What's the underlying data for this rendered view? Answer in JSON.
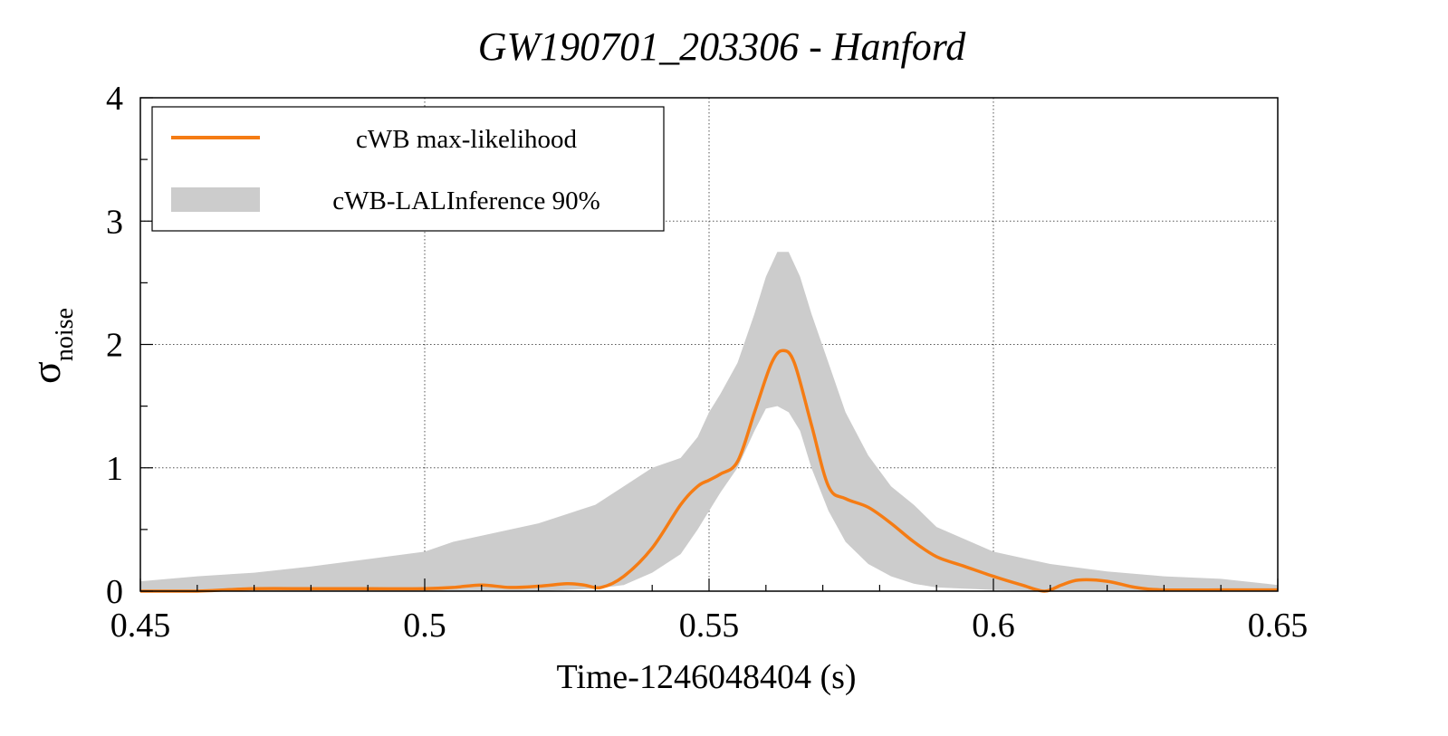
{
  "chart_data": {
    "type": "line",
    "title": "GW190701_203306 - Hanford",
    "xlabel": "Time-1246048404 (s)",
    "ylabel": {
      "main": "σ",
      "sub": "noise"
    },
    "xlim": [
      0.45,
      0.65
    ],
    "ylim": [
      0,
      4
    ],
    "x_ticks": [
      0.45,
      0.5,
      0.55,
      0.6,
      0.65
    ],
    "x_tick_labels": [
      "0.45",
      "0.5",
      "0.55",
      "0.6",
      "0.65"
    ],
    "y_ticks": [
      0,
      1,
      2,
      3,
      4
    ],
    "y_tick_labels": [
      "0",
      "1",
      "2",
      "3",
      "4"
    ],
    "grid": true,
    "legend_position": "top-left",
    "series": [
      {
        "name": "cWB max-likelihood",
        "kind": "line",
        "color": "#f57c14",
        "x": [
          0.45,
          0.46,
          0.47,
          0.48,
          0.49,
          0.5,
          0.505,
          0.51,
          0.515,
          0.52,
          0.525,
          0.528,
          0.531,
          0.535,
          0.54,
          0.545,
          0.548,
          0.55,
          0.552,
          0.555,
          0.558,
          0.561,
          0.563,
          0.565,
          0.568,
          0.571,
          0.574,
          0.578,
          0.582,
          0.586,
          0.59,
          0.595,
          0.6,
          0.605,
          0.609,
          0.612,
          0.615,
          0.62,
          0.625,
          0.63,
          0.64,
          0.65
        ],
        "y": [
          0.0,
          0.0,
          0.02,
          0.02,
          0.02,
          0.02,
          0.03,
          0.05,
          0.03,
          0.04,
          0.06,
          0.05,
          0.03,
          0.12,
          0.35,
          0.7,
          0.85,
          0.9,
          0.95,
          1.05,
          1.45,
          1.85,
          1.95,
          1.85,
          1.35,
          0.85,
          0.75,
          0.68,
          0.55,
          0.4,
          0.28,
          0.2,
          0.12,
          0.05,
          0.0,
          0.05,
          0.09,
          0.08,
          0.03,
          0.01,
          0.01,
          0.01
        ]
      },
      {
        "name": "cWB-LALInference 90%",
        "kind": "band",
        "color": "#cccccc",
        "x": [
          0.45,
          0.46,
          0.47,
          0.48,
          0.49,
          0.5,
          0.505,
          0.51,
          0.52,
          0.53,
          0.535,
          0.54,
          0.545,
          0.548,
          0.55,
          0.552,
          0.555,
          0.558,
          0.56,
          0.562,
          0.564,
          0.566,
          0.568,
          0.571,
          0.574,
          0.578,
          0.582,
          0.586,
          0.59,
          0.595,
          0.6,
          0.61,
          0.62,
          0.63,
          0.64,
          0.65
        ],
        "lower": [
          0.0,
          0.0,
          0.0,
          0.0,
          0.0,
          0.0,
          0.0,
          0.0,
          0.0,
          0.02,
          0.05,
          0.15,
          0.3,
          0.5,
          0.65,
          0.8,
          1.0,
          1.3,
          1.48,
          1.5,
          1.45,
          1.3,
          1.0,
          0.65,
          0.4,
          0.22,
          0.12,
          0.06,
          0.03,
          0.02,
          0.01,
          0.0,
          0.0,
          0.0,
          0.0,
          0.0
        ],
        "upper": [
          0.08,
          0.12,
          0.15,
          0.2,
          0.26,
          0.32,
          0.4,
          0.45,
          0.55,
          0.7,
          0.85,
          1.0,
          1.08,
          1.25,
          1.45,
          1.6,
          1.85,
          2.25,
          2.55,
          2.75,
          2.75,
          2.55,
          2.25,
          1.85,
          1.45,
          1.1,
          0.85,
          0.7,
          0.52,
          0.42,
          0.32,
          0.22,
          0.16,
          0.12,
          0.1,
          0.05
        ]
      }
    ]
  }
}
